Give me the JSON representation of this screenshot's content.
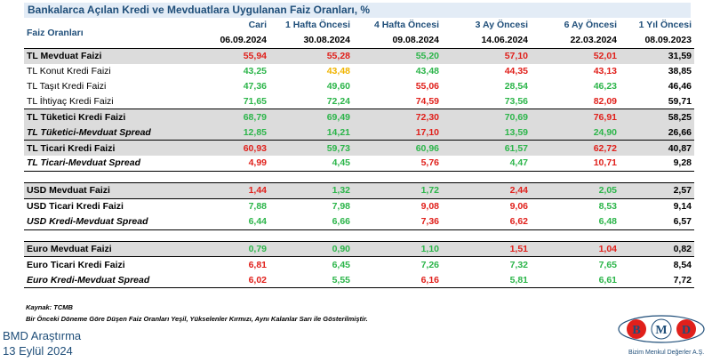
{
  "title": "Bankalarca Açılan Kredi ve Mevduatlara Uygulanan Faiz Oranları, %",
  "header": {
    "label": "Faiz Oranları",
    "periods": [
      "Cari",
      "1 Hafta Öncesi",
      "4 Hafta Öncesi",
      "3 Ay Öncesi",
      "6 Ay Öncesi",
      "1 Yıl Öncesi"
    ],
    "dates": [
      "06.09.2024",
      "30.08.2024",
      "09.08.2024",
      "14.06.2024",
      "22.03.2024",
      "08.09.2023"
    ]
  },
  "rows": [
    {
      "label": "TL Mevduat Faizi",
      "style": "bold",
      "gray": true,
      "top": true,
      "values": [
        "55,94",
        "55,28",
        "55,20",
        "57,10",
        "52,01",
        "31,59"
      ],
      "colors": [
        "red",
        "red",
        "green",
        "red",
        "red",
        "black"
      ]
    },
    {
      "label": "TL Konut Kredi Faizi",
      "style": "normal",
      "gray": false,
      "values": [
        "43,25",
        "43,48",
        "43,48",
        "44,35",
        "43,13",
        "38,85"
      ],
      "colors": [
        "green",
        "yellow",
        "green",
        "red",
        "red",
        "black"
      ]
    },
    {
      "label": "TL Taşıt Kredi Faizi",
      "style": "normal",
      "gray": false,
      "values": [
        "47,36",
        "49,60",
        "55,06",
        "28,54",
        "46,23",
        "46,46"
      ],
      "colors": [
        "green",
        "green",
        "red",
        "green",
        "green",
        "black"
      ]
    },
    {
      "label": "TL İhtiyaç Kredi Faizi",
      "style": "normal",
      "gray": false,
      "values": [
        "71,65",
        "72,24",
        "74,59",
        "73,56",
        "82,09",
        "59,71"
      ],
      "colors": [
        "green",
        "green",
        "red",
        "green",
        "red",
        "black"
      ]
    },
    {
      "label": "TL Tüketici Kredi Faizi",
      "style": "bold",
      "gray": true,
      "top": true,
      "values": [
        "68,79",
        "69,49",
        "72,30",
        "70,69",
        "76,91",
        "58,25"
      ],
      "colors": [
        "green",
        "green",
        "red",
        "green",
        "red",
        "black"
      ]
    },
    {
      "label": "TL Tüketici-Mevduat Spread",
      "style": "italic",
      "gray": true,
      "values": [
        "12,85",
        "14,21",
        "17,10",
        "13,59",
        "24,90",
        "26,66"
      ],
      "colors": [
        "green",
        "green",
        "red",
        "green",
        "green",
        "black"
      ]
    },
    {
      "label": "TL Ticari Kredi Faizi",
      "style": "bold",
      "gray": true,
      "top": true,
      "values": [
        "60,93",
        "59,73",
        "60,96",
        "61,57",
        "62,72",
        "40,87"
      ],
      "colors": [
        "red",
        "green",
        "green",
        "green",
        "red",
        "black"
      ]
    },
    {
      "label": "TL Ticari-Mevduat Spread",
      "style": "italic",
      "gray": false,
      "bottom": true,
      "values": [
        "4,99",
        "4,45",
        "5,76",
        "4,47",
        "10,71",
        "9,28"
      ],
      "colors": [
        "red",
        "green",
        "red",
        "green",
        "red",
        "black"
      ]
    },
    {
      "spacer": true
    },
    {
      "label": "USD Mevduat Faizi",
      "style": "bold",
      "gray": true,
      "top": true,
      "values": [
        "1,44",
        "1,32",
        "1,72",
        "2,44",
        "2,05",
        "2,57"
      ],
      "colors": [
        "red",
        "green",
        "green",
        "red",
        "green",
        "black"
      ]
    },
    {
      "label": "USD Ticari Kredi Faizi",
      "style": "bold",
      "gray": false,
      "top": true,
      "values": [
        "7,88",
        "7,98",
        "9,08",
        "9,06",
        "8,53",
        "9,14"
      ],
      "colors": [
        "green",
        "green",
        "red",
        "red",
        "green",
        "black"
      ]
    },
    {
      "label": "USD Kredi-Mevduat Spread",
      "style": "italic",
      "gray": false,
      "bottom": true,
      "values": [
        "6,44",
        "6,66",
        "7,36",
        "6,62",
        "6,48",
        "6,57"
      ],
      "colors": [
        "green",
        "green",
        "red",
        "red",
        "green",
        "black"
      ]
    },
    {
      "spacer": true
    },
    {
      "label": "Euro Mevduat Faizi",
      "style": "bold",
      "gray": true,
      "top": true,
      "values": [
        "0,79",
        "0,90",
        "1,10",
        "1,51",
        "1,04",
        "0,82"
      ],
      "colors": [
        "green",
        "green",
        "green",
        "red",
        "red",
        "black"
      ]
    },
    {
      "label": "Euro Ticari Kredi Faizi",
      "style": "bold",
      "gray": false,
      "top": true,
      "values": [
        "6,81",
        "6,45",
        "7,26",
        "7,32",
        "7,65",
        "8,54"
      ],
      "colors": [
        "red",
        "green",
        "green",
        "green",
        "green",
        "black"
      ]
    },
    {
      "label": "Euro Kredi-Mevduat Spread",
      "style": "italic",
      "gray": false,
      "bottom": true,
      "values": [
        "6,02",
        "5,55",
        "6,16",
        "5,81",
        "6,61",
        "7,72"
      ],
      "colors": [
        "red",
        "green",
        "red",
        "green",
        "green",
        "black"
      ]
    }
  ],
  "source": "Kaynak: TCMB",
  "note": "Bir Önceki Döneme Göre Düşen Faiz Oranları Yeşil, Yükselenler Kırmızı, Aynı Kalanlar Sarı ile Gösterilmiştir.",
  "footer": {
    "company": "BMD Araştırma",
    "date": "13 Eylül 2024"
  },
  "logo": {
    "text": "BMD",
    "subtitle": "Bizim Menkul Değerler A.Ş."
  },
  "colors": {
    "green": "#2cb54a",
    "red": "#e0201b",
    "yellow": "#f0b400",
    "accent": "#1f4e79",
    "gray_row": "#dcdcdc"
  }
}
